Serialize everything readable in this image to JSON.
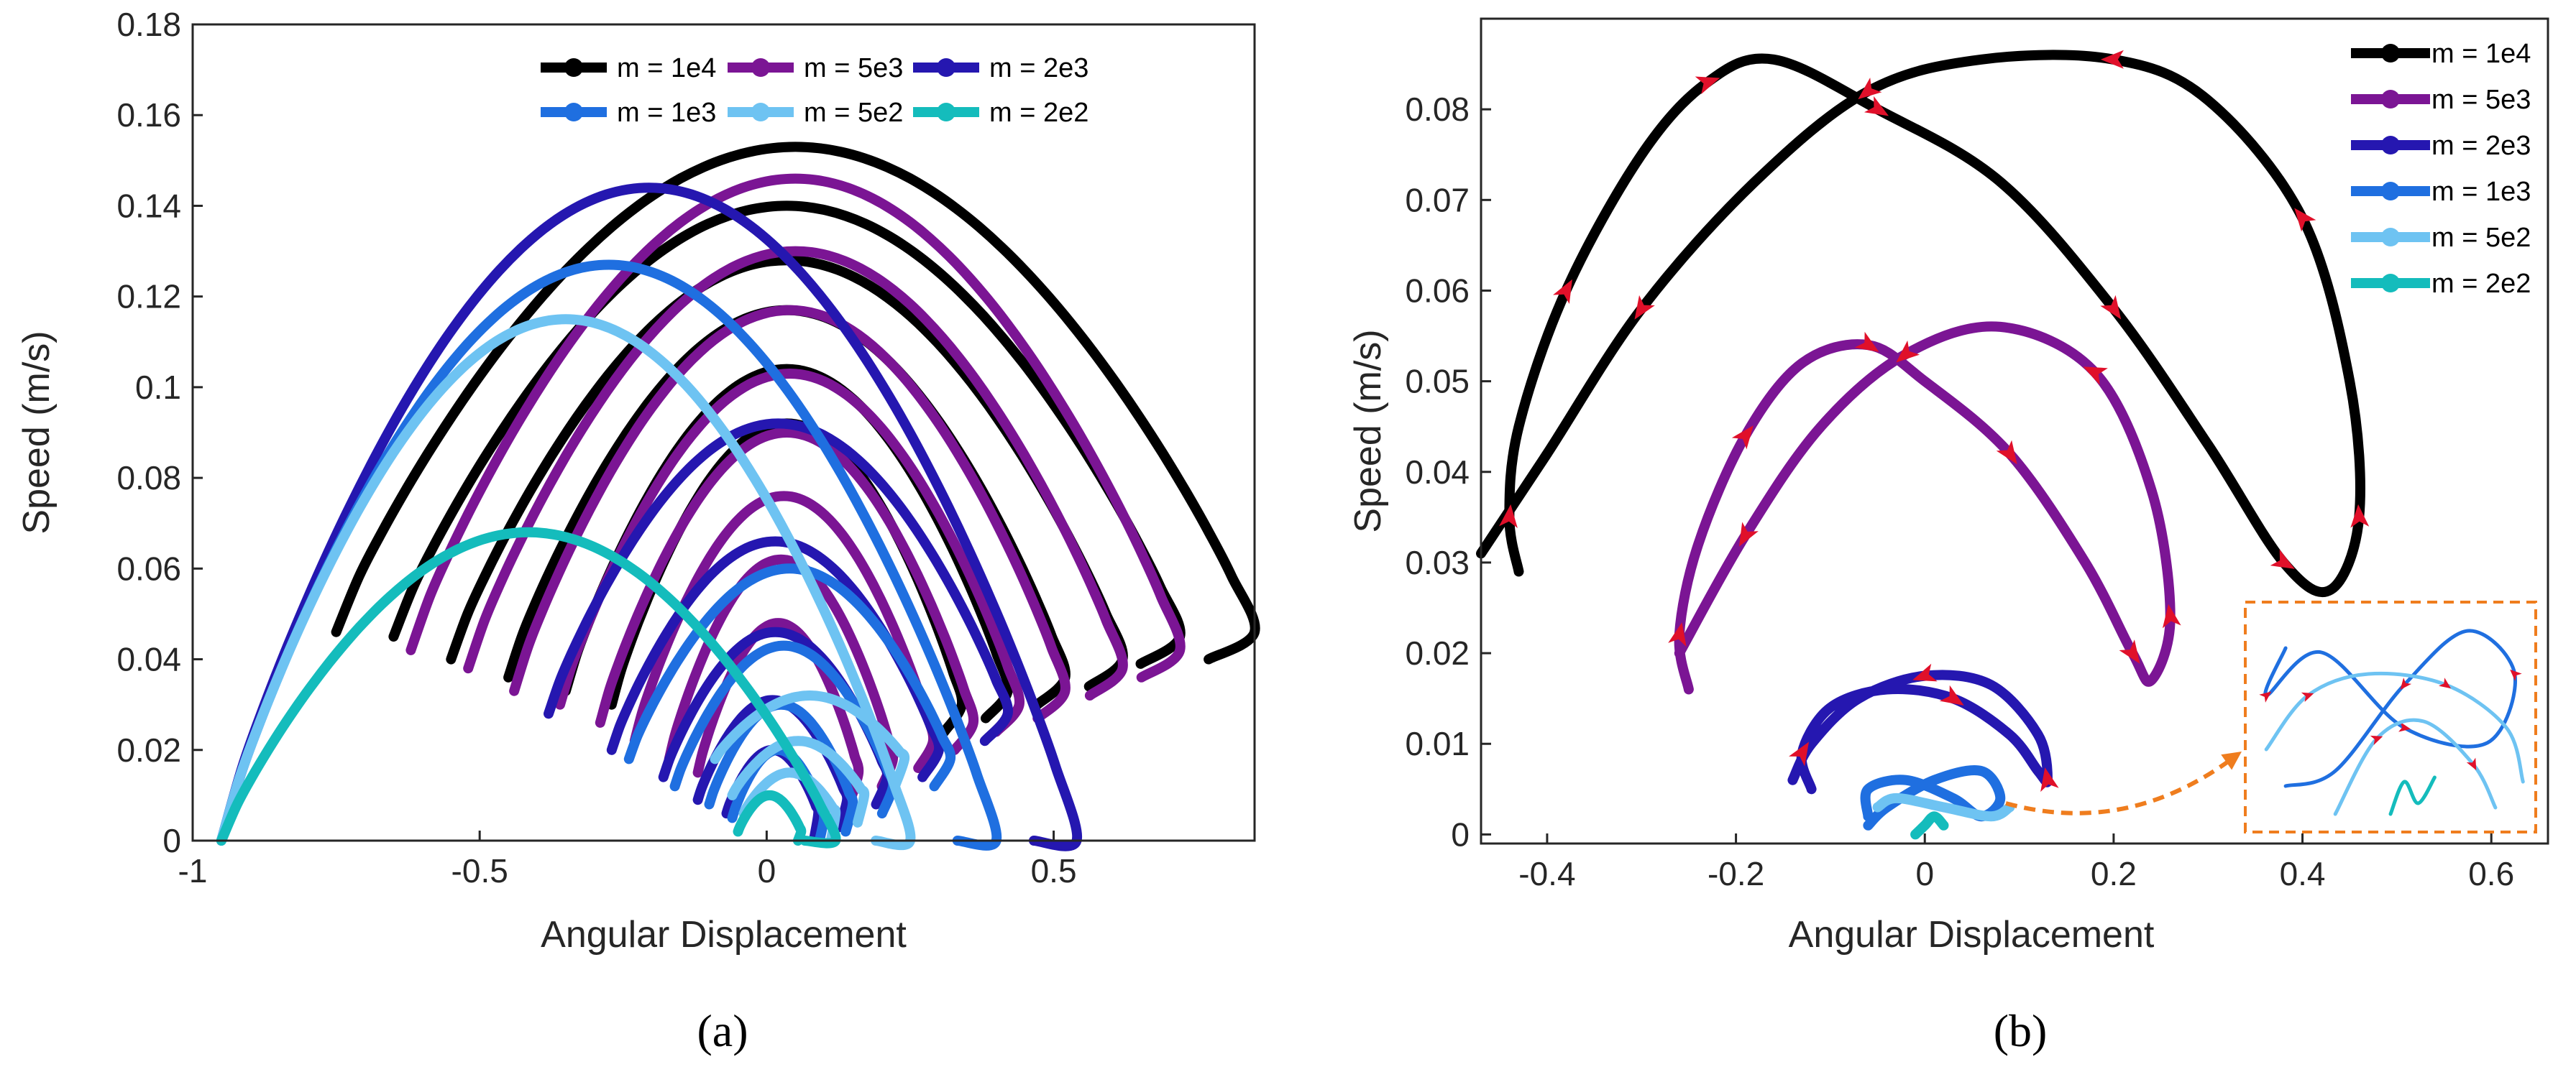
{
  "colors": {
    "m1e4": "#000000",
    "m5e3": "#7b1594",
    "m2e3": "#2517b0",
    "m1e3": "#1f6fe0",
    "m5e2": "#6ec3f2",
    "m2e2": "#14bcbc",
    "arrow": "#e0102a",
    "inset_border": "#ef7d1e"
  },
  "chart_data": [
    {
      "type": "line",
      "panel": "(a)",
      "caption": "(a)",
      "title": "",
      "xlabel": "Angular Displacement",
      "ylabel": "Speed (m/s)",
      "xlim": [
        -1,
        0.85
      ],
      "ylim": [
        0,
        0.18
      ],
      "xticks": [
        -1,
        -0.5,
        0,
        0.5
      ],
      "xtick_labels": [
        "-1",
        "-0.5",
        "0",
        "0.5"
      ],
      "yticks": [
        0,
        0.02,
        0.04,
        0.06,
        0.08,
        0.1,
        0.12,
        0.14,
        0.16,
        0.18
      ],
      "ytick_labels": [
        "0",
        "0.02",
        "0.04",
        "0.06",
        "0.08",
        "0.1",
        "0.12",
        "0.14",
        "0.16",
        "0.18"
      ],
      "legend_position": "top-right",
      "legend_layout": "3 columns",
      "series": [
        {
          "name": "m = 1e4",
          "color_key": "m1e4",
          "description": "decaying phase-portrait loops",
          "loops": [
            [
              -0.75,
              0.85,
              0.153,
              0.046
            ],
            [
              -0.65,
              0.72,
              0.14,
              0.045
            ],
            [
              -0.55,
              0.62,
              0.128,
              0.04
            ],
            [
              -0.45,
              0.52,
              0.117,
              0.036
            ],
            [
              -0.35,
              0.42,
              0.104,
              0.033
            ],
            [
              -0.27,
              0.34,
              0.092,
              0.03
            ]
          ]
        },
        {
          "name": "m = 5e3",
          "color_key": "m5e3",
          "loops": [
            [
              -0.62,
              0.72,
              0.146,
              0.042
            ],
            [
              -0.52,
              0.62,
              0.13,
              0.038
            ],
            [
              -0.44,
              0.52,
              0.117,
              0.033
            ],
            [
              -0.36,
              0.44,
              0.103,
              0.03
            ],
            [
              -0.29,
              0.36,
              0.09,
              0.026
            ],
            [
              -0.23,
              0.29,
              0.076,
              0.022
            ],
            [
              -0.17,
              0.22,
              0.062,
              0.018
            ],
            [
              -0.12,
              0.16,
              0.048,
              0.015
            ]
          ]
        },
        {
          "name": "m = 2e3",
          "color_key": "m2e3",
          "loops": [
            [
              -0.95,
              0.54,
              0.144,
              0.0
            ],
            [
              -0.38,
              0.42,
              0.092,
              0.028
            ],
            [
              -0.27,
              0.3,
              0.066,
              0.02
            ],
            [
              -0.18,
              0.21,
              0.046,
              0.014
            ],
            [
              -0.12,
              0.14,
              0.031,
              0.009
            ],
            [
              -0.07,
              0.09,
              0.02,
              0.006
            ]
          ]
        },
        {
          "name": "m = 1e3",
          "color_key": "m1e3",
          "loops": [
            [
              -0.95,
              0.4,
              0.127,
              0.0
            ],
            [
              -0.24,
              0.32,
              0.06,
              0.018
            ],
            [
              -0.16,
              0.22,
              0.043,
              0.012
            ],
            [
              -0.1,
              0.15,
              0.03,
              0.008
            ],
            [
              -0.06,
              0.1,
              0.02,
              0.005
            ]
          ]
        },
        {
          "name": "m = 5e2",
          "color_key": "m5e2",
          "loops": [
            [
              -0.95,
              0.25,
              0.115,
              0.0
            ],
            [
              -0.09,
              0.24,
              0.032,
              0.018
            ],
            [
              -0.06,
              0.17,
              0.022,
              0.01
            ],
            [
              -0.04,
              0.12,
              0.015,
              0.006
            ]
          ]
        },
        {
          "name": "m = 2e2",
          "color_key": "m2e2",
          "loops": [
            [
              -0.95,
              0.12,
              0.068,
              0.0
            ],
            [
              -0.05,
              0.06,
              0.01,
              0.002
            ]
          ]
        }
      ]
    },
    {
      "type": "line",
      "panel": "(b)",
      "caption": "(b)",
      "title": "",
      "xlabel": "Angular Displacement",
      "ylabel": "Speed (m/s)",
      "xlim": [
        -0.47,
        0.66
      ],
      "ylim": [
        -0.001,
        0.09
      ],
      "xticks": [
        -0.4,
        -0.2,
        0,
        0.2,
        0.4,
        0.6
      ],
      "xtick_labels": [
        "-0.4",
        "-0.2",
        "0",
        "0.2",
        "0.4",
        "0.6"
      ],
      "yticks": [
        0,
        0.01,
        0.02,
        0.03,
        0.04,
        0.05,
        0.06,
        0.07,
        0.08
      ],
      "ytick_labels": [
        "0",
        "0.01",
        "0.02",
        "0.03",
        "0.04",
        "0.05",
        "0.06",
        "0.07",
        "0.08"
      ],
      "legend_position": "top-right",
      "legend_layout": "1 column",
      "annotation": "direction-of-motion arrows (red) and zoomed inset (orange dashed box) for small-mass trajectories",
      "series": [
        {
          "name": "m = 1e4",
          "color_key": "m1e4",
          "points": [
            [
              -0.43,
              0.029
            ],
            [
              -0.44,
              0.035
            ],
            [
              -0.43,
              0.045
            ],
            [
              -0.38,
              0.06
            ],
            [
              -0.3,
              0.075
            ],
            [
              -0.23,
              0.083
            ],
            [
              -0.16,
              0.0855
            ],
            [
              -0.05,
              0.08
            ],
            [
              0.08,
              0.072
            ],
            [
              0.2,
              0.058
            ],
            [
              0.3,
              0.043
            ],
            [
              0.38,
              0.03
            ],
            [
              0.43,
              0.027
            ],
            [
              0.46,
              0.035
            ],
            [
              0.45,
              0.05
            ],
            [
              0.4,
              0.068
            ],
            [
              0.3,
              0.081
            ],
            [
              0.2,
              0.0855
            ],
            [
              0.06,
              0.0855
            ],
            [
              -0.06,
              0.082
            ],
            [
              -0.18,
              0.072
            ],
            [
              -0.3,
              0.058
            ],
            [
              -0.4,
              0.042
            ],
            [
              -0.47,
              0.031
            ]
          ]
        },
        {
          "name": "m = 5e3",
          "color_key": "m5e3",
          "points": [
            [
              -0.25,
              0.016
            ],
            [
              -0.26,
              0.022
            ],
            [
              -0.24,
              0.032
            ],
            [
              -0.19,
              0.044
            ],
            [
              -0.13,
              0.052
            ],
            [
              -0.06,
              0.054
            ],
            [
              0.0,
              0.05
            ],
            [
              0.09,
              0.042
            ],
            [
              0.17,
              0.03
            ],
            [
              0.22,
              0.02
            ],
            [
              0.24,
              0.017
            ],
            [
              0.26,
              0.024
            ],
            [
              0.24,
              0.038
            ],
            [
              0.18,
              0.051
            ],
            [
              0.08,
              0.056
            ],
            [
              -0.02,
              0.053
            ],
            [
              -0.11,
              0.045
            ],
            [
              -0.19,
              0.033
            ],
            [
              -0.26,
              0.02
            ]
          ]
        },
        {
          "name": "m = 2e3",
          "color_key": "m2e3",
          "points": [
            [
              -0.12,
              0.005
            ],
            [
              -0.13,
              0.009
            ],
            [
              -0.1,
              0.014
            ],
            [
              -0.04,
              0.016
            ],
            [
              0.03,
              0.015
            ],
            [
              0.09,
              0.011
            ],
            [
              0.12,
              0.007
            ],
            [
              0.13,
              0.006
            ],
            [
              0.12,
              0.011
            ],
            [
              0.07,
              0.0165
            ],
            [
              0.0,
              0.0175
            ],
            [
              -0.07,
              0.015
            ],
            [
              -0.12,
              0.01
            ],
            [
              -0.14,
              0.006
            ]
          ]
        },
        {
          "name": "m = 1e3",
          "color_key": "m1e3",
          "points": [
            [
              -0.06,
              0.002
            ],
            [
              -0.06,
              0.005
            ],
            [
              -0.02,
              0.006
            ],
            [
              0.03,
              0.004
            ],
            [
              0.06,
              0.002
            ],
            [
              0.08,
              0.004
            ],
            [
              0.06,
              0.007
            ],
            [
              0.01,
              0.006
            ],
            [
              -0.04,
              0.003
            ],
            [
              -0.06,
              0.001
            ]
          ]
        },
        {
          "name": "m = 5e2",
          "color_key": "m5e2",
          "points": [
            [
              -0.05,
              0.003
            ],
            [
              -0.03,
              0.004
            ],
            [
              0.02,
              0.003
            ],
            [
              0.07,
              0.002
            ],
            [
              0.09,
              0.003
            ]
          ]
        },
        {
          "name": "m = 2e2",
          "color_key": "m2e2",
          "points": [
            [
              -0.01,
              0.0
            ],
            [
              0.0,
              0.001
            ],
            [
              0.01,
              0.002
            ],
            [
              0.02,
              0.001
            ]
          ]
        }
      ]
    }
  ]
}
